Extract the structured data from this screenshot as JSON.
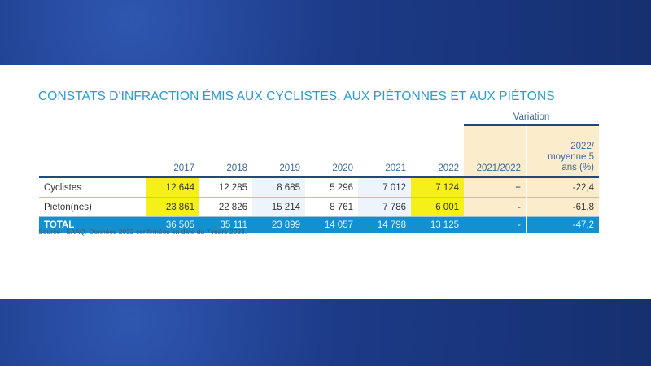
{
  "title": "CONSTATS D'INFRACTION ÉMIS AUX CYCLISTES, AUX PIÉTONNES ET AUX PIÉTONS",
  "variation_label": "Variation",
  "headers": [
    "2017",
    "2018",
    "2019",
    "2020",
    "2021",
    "2022",
    "2021/2022",
    "2022/ moyenne 5 ans (%)"
  ],
  "rows": [
    {
      "label": "Cyclistes",
      "values": [
        "12 644",
        "12 285",
        "8 685",
        "5 296",
        "7 012",
        "7 124",
        "+",
        "-22,4"
      ]
    },
    {
      "label": "Piéton(nes)",
      "values": [
        "23 861",
        "22 826",
        "15 214",
        "8 761",
        "7 786",
        "6 001",
        "-",
        "-61,8"
      ]
    }
  ],
  "total": {
    "label": "TOTAL",
    "values": [
      "36 505",
      "35 111",
      "23 899",
      "14 057",
      "14 798",
      "13 125",
      "-",
      "-47,2"
    ]
  },
  "source": "Source : SAAQ. Données 2022 confirmées en date du 7 mars 2023.",
  "colors": {
    "title": "#2a9bd3",
    "total_row": "#1590cf",
    "highlight": "#f5ef1a",
    "variation_bg": "#fbeccb"
  }
}
